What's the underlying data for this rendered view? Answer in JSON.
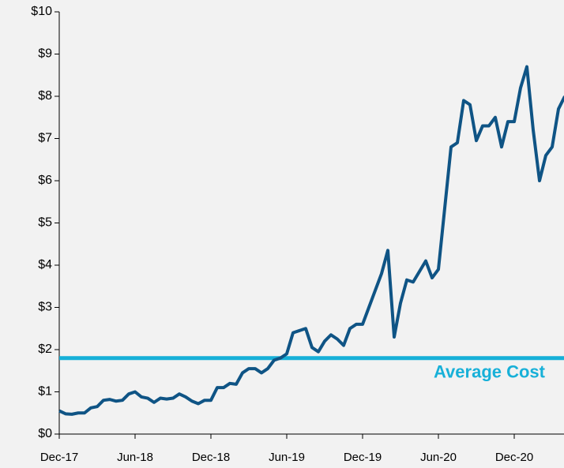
{
  "chart_data": {
    "type": "line",
    "categories": [
      "Dec-17",
      null,
      null,
      null,
      null,
      null,
      null,
      null,
      null,
      null,
      null,
      null,
      "Jun-18",
      null,
      null,
      null,
      null,
      null,
      null,
      null,
      null,
      null,
      null,
      null,
      "Dec-18",
      null,
      null,
      null,
      null,
      null,
      null,
      null,
      null,
      null,
      null,
      null,
      "Jun-19",
      null,
      null,
      null,
      null,
      null,
      null,
      null,
      null,
      null,
      null,
      null,
      "Dec-19",
      null,
      null,
      null,
      null,
      null,
      null,
      null,
      null,
      null,
      null,
      null,
      "Jun-20",
      null,
      null,
      null,
      null,
      null,
      null,
      null,
      null,
      null,
      null,
      null,
      "Dec-20",
      null,
      null,
      null,
      null,
      null,
      null,
      null,
      null
    ],
    "series": [
      {
        "color": "#0f5485",
        "values": [
          0.55,
          0.48,
          0.47,
          0.5,
          0.5,
          0.62,
          0.65,
          0.8,
          0.82,
          0.78,
          0.8,
          0.95,
          1.0,
          0.88,
          0.85,
          0.75,
          0.85,
          0.83,
          0.85,
          0.95,
          0.88,
          0.78,
          0.72,
          0.8,
          0.8,
          1.1,
          1.1,
          1.2,
          1.18,
          1.45,
          1.55,
          1.55,
          1.45,
          1.55,
          1.75,
          1.8,
          1.9,
          2.4,
          2.45,
          2.5,
          2.05,
          1.95,
          2.2,
          2.35,
          2.25,
          2.1,
          2.5,
          2.6,
          2.6,
          3.0,
          3.4,
          3.8,
          4.35,
          2.3,
          3.1,
          3.65,
          3.6,
          3.85,
          4.1,
          3.7,
          3.9,
          5.35,
          6.8,
          6.9,
          7.9,
          7.8,
          6.95,
          7.3,
          7.3,
          7.5,
          6.8,
          7.4,
          7.4,
          8.2,
          8.7,
          7.2,
          6.0,
          6.6,
          6.8,
          7.7,
          8.0
        ]
      }
    ],
    "average_cost": {
      "label": "Average Cost",
      "value": 1.8,
      "color": "#17b0d8"
    },
    "ylim": [
      0,
      10
    ],
    "yticks": [
      {
        "value": 0,
        "label": "$0"
      },
      {
        "value": 1,
        "label": "$1"
      },
      {
        "value": 2,
        "label": "$2"
      },
      {
        "value": 3,
        "label": "$3"
      },
      {
        "value": 4,
        "label": "$4"
      },
      {
        "value": 5,
        "label": "$5"
      },
      {
        "value": 6,
        "label": "$6"
      },
      {
        "value": 7,
        "label": "$7"
      },
      {
        "value": 8,
        "label": "$8"
      },
      {
        "value": 9,
        "label": "$9"
      },
      {
        "value": 10,
        "label": "$10"
      }
    ]
  }
}
